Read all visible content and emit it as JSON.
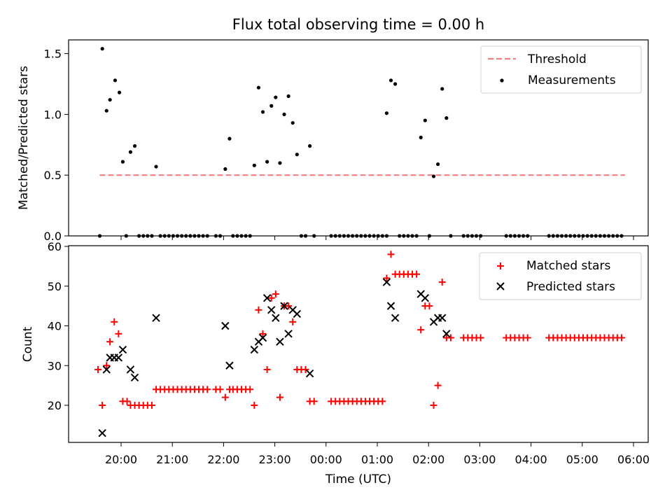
{
  "chart_data": [
    {
      "type": "scatter",
      "title": "Flux total observing time = 0.00 h",
      "xlabel": "",
      "ylabel": "Matched/Predicted stars",
      "ylim": [
        0,
        1.6
      ],
      "yticks": [
        0.0,
        0.5,
        1.0,
        1.5
      ],
      "ytick_labels": [
        "0.0",
        "0.5",
        "1.0",
        "1.5"
      ],
      "xlim": [
        "19:20",
        "06:30"
      ],
      "xticks": [
        "20:00",
        "21:00",
        "22:00",
        "23:00",
        "00:00",
        "01:00",
        "02:00",
        "03:00",
        "04:00",
        "05:00",
        "06:00"
      ],
      "grid": false,
      "legend": "top-right",
      "threshold": {
        "name": "Threshold",
        "value": 0.5,
        "x_start": "19:35",
        "x_end": "05:50",
        "color": "#f08080",
        "style": "dashed"
      },
      "series": [
        {
          "name": "Measurements",
          "marker": "dot",
          "color": "#000000",
          "points": [
            [
              "19:35",
              0.0
            ],
            [
              "19:38",
              1.54
            ],
            [
              "19:43",
              1.03
            ],
            [
              "19:47",
              1.12
            ],
            [
              "19:53",
              1.28
            ],
            [
              "19:58",
              1.18
            ],
            [
              "20:02",
              0.61
            ],
            [
              "20:06",
              0.0
            ],
            [
              "20:11",
              0.69
            ],
            [
              "20:16",
              0.74
            ],
            [
              "20:21",
              0.0
            ],
            [
              "20:26",
              0.0
            ],
            [
              "20:31",
              0.0
            ],
            [
              "20:36",
              0.0
            ],
            [
              "20:41",
              0.57
            ],
            [
              "20:46",
              0.0
            ],
            [
              "20:51",
              0.0
            ],
            [
              "20:56",
              0.0
            ],
            [
              "21:01",
              0.0
            ],
            [
              "21:06",
              0.0
            ],
            [
              "21:11",
              0.0
            ],
            [
              "21:16",
              0.0
            ],
            [
              "21:21",
              0.0
            ],
            [
              "21:26",
              0.0
            ],
            [
              "21:31",
              0.0
            ],
            [
              "21:36",
              0.0
            ],
            [
              "21:41",
              0.0
            ],
            [
              "21:51",
              0.0
            ],
            [
              "21:56",
              0.0
            ],
            [
              "22:02",
              0.55
            ],
            [
              "22:07",
              0.8
            ],
            [
              "22:11",
              0.0
            ],
            [
              "22:16",
              0.0
            ],
            [
              "22:21",
              0.0
            ],
            [
              "22:26",
              0.0
            ],
            [
              "22:31",
              0.0
            ],
            [
              "22:36",
              0.58
            ],
            [
              "22:41",
              1.22
            ],
            [
              "22:46",
              1.02
            ],
            [
              "22:51",
              0.61
            ],
            [
              "22:56",
              1.07
            ],
            [
              "23:01",
              1.14
            ],
            [
              "23:06",
              0.6
            ],
            [
              "23:11",
              1.0
            ],
            [
              "23:16",
              1.15
            ],
            [
              "23:21",
              0.93
            ],
            [
              "23:26",
              0.67
            ],
            [
              "23:31",
              0.0
            ],
            [
              "23:36",
              0.0
            ],
            [
              "23:41",
              0.74
            ],
            [
              "23:46",
              0.0
            ],
            [
              "00:06",
              0.0
            ],
            [
              "00:11",
              0.0
            ],
            [
              "00:16",
              0.0
            ],
            [
              "00:21",
              0.0
            ],
            [
              "00:26",
              0.0
            ],
            [
              "00:31",
              0.0
            ],
            [
              "00:36",
              0.0
            ],
            [
              "00:41",
              0.0
            ],
            [
              "00:46",
              0.0
            ],
            [
              "00:51",
              0.0
            ],
            [
              "00:56",
              0.0
            ],
            [
              "01:01",
              0.0
            ],
            [
              "01:06",
              0.0
            ],
            [
              "01:11",
              0.0
            ],
            [
              "01:11",
              1.01
            ],
            [
              "01:16",
              1.28
            ],
            [
              "01:21",
              1.25
            ],
            [
              "01:26",
              0.0
            ],
            [
              "01:31",
              0.0
            ],
            [
              "01:36",
              0.0
            ],
            [
              "01:41",
              0.0
            ],
            [
              "01:46",
              0.0
            ],
            [
              "01:51",
              0.81
            ],
            [
              "01:56",
              0.95
            ],
            [
              "02:01",
              0.0
            ],
            [
              "02:06",
              0.49
            ],
            [
              "02:11",
              0.59
            ],
            [
              "02:16",
              1.21
            ],
            [
              "02:21",
              0.97
            ],
            [
              "02:26",
              0.0
            ],
            [
              "02:41",
              0.0
            ],
            [
              "02:46",
              0.0
            ],
            [
              "02:51",
              0.0
            ],
            [
              "02:56",
              0.0
            ],
            [
              "03:01",
              0.0
            ],
            [
              "03:31",
              0.0
            ],
            [
              "03:36",
              0.0
            ],
            [
              "03:41",
              0.0
            ],
            [
              "03:46",
              0.0
            ],
            [
              "03:51",
              0.0
            ],
            [
              "03:56",
              0.0
            ],
            [
              "04:21",
              0.0
            ],
            [
              "04:26",
              0.0
            ],
            [
              "04:31",
              0.0
            ],
            [
              "04:36",
              0.0
            ],
            [
              "04:41",
              0.0
            ],
            [
              "04:46",
              0.0
            ],
            [
              "04:51",
              0.0
            ],
            [
              "04:56",
              0.0
            ],
            [
              "05:01",
              0.0
            ],
            [
              "05:06",
              0.0
            ],
            [
              "05:11",
              0.0
            ],
            [
              "05:16",
              0.0
            ],
            [
              "05:21",
              0.0
            ],
            [
              "05:26",
              0.0
            ],
            [
              "05:31",
              0.0
            ],
            [
              "05:36",
              0.0
            ],
            [
              "05:41",
              0.0
            ],
            [
              "05:46",
              0.0
            ]
          ]
        }
      ]
    },
    {
      "type": "scatter",
      "title": "",
      "xlabel": "Time (UTC)",
      "ylabel": "Count",
      "ylim": [
        11,
        60
      ],
      "yticks": [
        20,
        30,
        40,
        50,
        60
      ],
      "ytick_labels": [
        "20",
        "30",
        "40",
        "50",
        "60"
      ],
      "xlim": [
        "19:20",
        "06:30"
      ],
      "xticks": [
        "20:00",
        "21:00",
        "22:00",
        "23:00",
        "00:00",
        "01:00",
        "02:00",
        "03:00",
        "04:00",
        "05:00",
        "06:00"
      ],
      "xtick_labels": [
        "20:00",
        "21:00",
        "22:00",
        "23:00",
        "00:00",
        "01:00",
        "02:00",
        "03:00",
        "04:00",
        "05:00",
        "06:00"
      ],
      "grid": false,
      "legend": "top-right",
      "series": [
        {
          "name": "Matched stars",
          "marker": "plus",
          "color": "#ff0000",
          "points": [
            [
              "19:33",
              29
            ],
            [
              "19:38",
              20
            ],
            [
              "19:43",
              30
            ],
            [
              "19:47",
              36
            ],
            [
              "19:52",
              41
            ],
            [
              "19:57",
              38
            ],
            [
              "20:02",
              21
            ],
            [
              "20:07",
              21
            ],
            [
              "20:11",
              20
            ],
            [
              "20:16",
              20
            ],
            [
              "20:21",
              20
            ],
            [
              "20:26",
              20
            ],
            [
              "20:31",
              20
            ],
            [
              "20:36",
              20
            ],
            [
              "20:41",
              24
            ],
            [
              "20:46",
              24
            ],
            [
              "20:51",
              24
            ],
            [
              "20:56",
              24
            ],
            [
              "21:01",
              24
            ],
            [
              "21:06",
              24
            ],
            [
              "21:11",
              24
            ],
            [
              "21:16",
              24
            ],
            [
              "21:21",
              24
            ],
            [
              "21:26",
              24
            ],
            [
              "21:31",
              24
            ],
            [
              "21:36",
              24
            ],
            [
              "21:41",
              24
            ],
            [
              "21:51",
              24
            ],
            [
              "21:56",
              24
            ],
            [
              "22:02",
              22
            ],
            [
              "22:07",
              24
            ],
            [
              "22:11",
              24
            ],
            [
              "22:16",
              24
            ],
            [
              "22:21",
              24
            ],
            [
              "22:26",
              24
            ],
            [
              "22:31",
              24
            ],
            [
              "22:36",
              20
            ],
            [
              "22:41",
              44
            ],
            [
              "22:46",
              38
            ],
            [
              "22:51",
              29
            ],
            [
              "22:56",
              47
            ],
            [
              "23:01",
              48
            ],
            [
              "23:06",
              22
            ],
            [
              "23:11",
              45
            ],
            [
              "23:16",
              45
            ],
            [
              "23:21",
              41
            ],
            [
              "23:26",
              29
            ],
            [
              "23:31",
              29
            ],
            [
              "23:36",
              29
            ],
            [
              "23:41",
              21
            ],
            [
              "23:46",
              21
            ],
            [
              "00:06",
              21
            ],
            [
              "00:11",
              21
            ],
            [
              "00:16",
              21
            ],
            [
              "00:21",
              21
            ],
            [
              "00:26",
              21
            ],
            [
              "00:31",
              21
            ],
            [
              "00:36",
              21
            ],
            [
              "00:41",
              21
            ],
            [
              "00:46",
              21
            ],
            [
              "00:51",
              21
            ],
            [
              "00:56",
              21
            ],
            [
              "01:01",
              21
            ],
            [
              "01:06",
              21
            ],
            [
              "01:11",
              52
            ],
            [
              "01:16",
              58
            ],
            [
              "01:21",
              53
            ],
            [
              "01:26",
              53
            ],
            [
              "01:31",
              53
            ],
            [
              "01:36",
              53
            ],
            [
              "01:41",
              53
            ],
            [
              "01:46",
              53
            ],
            [
              "01:51",
              39
            ],
            [
              "01:56",
              45
            ],
            [
              "02:01",
              45
            ],
            [
              "02:06",
              20
            ],
            [
              "02:11",
              25
            ],
            [
              "02:16",
              51
            ],
            [
              "02:21",
              37
            ],
            [
              "02:26",
              37
            ],
            [
              "02:41",
              37
            ],
            [
              "02:46",
              37
            ],
            [
              "02:51",
              37
            ],
            [
              "02:56",
              37
            ],
            [
              "03:01",
              37
            ],
            [
              "03:31",
              37
            ],
            [
              "03:36",
              37
            ],
            [
              "03:41",
              37
            ],
            [
              "03:46",
              37
            ],
            [
              "03:51",
              37
            ],
            [
              "03:56",
              37
            ],
            [
              "04:21",
              37
            ],
            [
              "04:26",
              37
            ],
            [
              "04:31",
              37
            ],
            [
              "04:36",
              37
            ],
            [
              "04:41",
              37
            ],
            [
              "04:46",
              37
            ],
            [
              "04:51",
              37
            ],
            [
              "04:56",
              37
            ],
            [
              "05:01",
              37
            ],
            [
              "05:06",
              37
            ],
            [
              "05:11",
              37
            ],
            [
              "05:16",
              37
            ],
            [
              "05:21",
              37
            ],
            [
              "05:26",
              37
            ],
            [
              "05:31",
              37
            ],
            [
              "05:36",
              37
            ],
            [
              "05:41",
              37
            ],
            [
              "05:46",
              37
            ]
          ]
        },
        {
          "name": "Predicted stars",
          "marker": "x",
          "color": "#000000",
          "points": [
            [
              "19:38",
              13
            ],
            [
              "19:43",
              29
            ],
            [
              "19:47",
              32
            ],
            [
              "19:52",
              32
            ],
            [
              "19:57",
              32
            ],
            [
              "20:02",
              34
            ],
            [
              "20:11",
              29
            ],
            [
              "20:16",
              27
            ],
            [
              "20:41",
              42
            ],
            [
              "22:02",
              40
            ],
            [
              "22:07",
              30
            ],
            [
              "22:36",
              34
            ],
            [
              "22:41",
              36
            ],
            [
              "22:46",
              37
            ],
            [
              "22:51",
              47
            ],
            [
              "22:56",
              44
            ],
            [
              "23:01",
              42
            ],
            [
              "23:06",
              36
            ],
            [
              "23:11",
              45
            ],
            [
              "23:16",
              38
            ],
            [
              "23:21",
              44
            ],
            [
              "23:26",
              43
            ],
            [
              "23:41",
              28
            ],
            [
              "01:11",
              51
            ],
            [
              "01:16",
              45
            ],
            [
              "01:21",
              42
            ],
            [
              "01:51",
              48
            ],
            [
              "01:56",
              47
            ],
            [
              "02:06",
              41
            ],
            [
              "02:11",
              42
            ],
            [
              "02:16",
              42
            ],
            [
              "02:21",
              38
            ]
          ]
        }
      ]
    }
  ]
}
